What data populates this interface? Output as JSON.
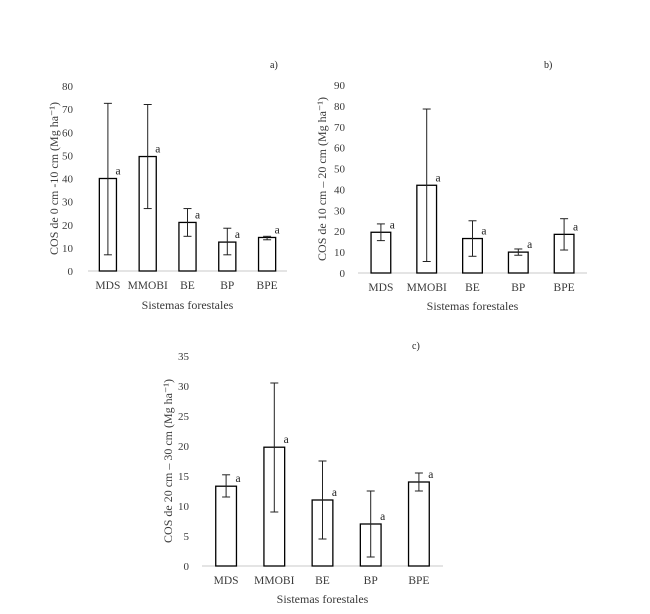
{
  "chart_data": [
    {
      "type": "bar",
      "panel_label": "a)",
      "ylabel": "COS de 0 cm -10 cm (Mg ha⁻¹)",
      "xlabel": "Sistemas forestales",
      "categories": [
        "MDS",
        "MMOBI",
        "BE",
        "BP",
        "BPE"
      ],
      "values": [
        40,
        49.5,
        21,
        12.5,
        14.5
      ],
      "error_low": [
        7,
        27,
        15,
        7,
        13.5
      ],
      "error_high": [
        72.5,
        72,
        27,
        18.5,
        15
      ],
      "significance": [
        "a",
        "a",
        "a",
        "a",
        "a"
      ],
      "ylim": [
        0,
        80
      ],
      "yticks": [
        0,
        10,
        20,
        30,
        40,
        50,
        60,
        70,
        80
      ],
      "grid": false
    },
    {
      "type": "bar",
      "panel_label": "b)",
      "ylabel": "COS de 10 cm – 20 cm (Mg ha⁻¹)",
      "xlabel": "Sistemas forestales",
      "categories": [
        "MDS",
        "MMOBI",
        "BE",
        "BP",
        "BPE"
      ],
      "values": [
        19.5,
        42,
        16.5,
        10,
        18.5
      ],
      "error_low": [
        15.5,
        5.5,
        8,
        8.5,
        11
      ],
      "error_high": [
        23.5,
        78.5,
        25,
        11.5,
        26
      ],
      "significance": [
        "a",
        "a",
        "a",
        "a",
        "a"
      ],
      "ylim": [
        0,
        90
      ],
      "yticks": [
        0,
        10,
        20,
        30,
        40,
        50,
        60,
        70,
        80,
        90
      ],
      "grid": false
    },
    {
      "type": "bar",
      "panel_label": "c)",
      "ylabel": "COS de 20 cm – 30 cm (Mg ha⁻¹)",
      "xlabel": "Sistemas forestales",
      "categories": [
        "MDS",
        "MMOBI",
        "BE",
        "BP",
        "BPE"
      ],
      "values": [
        13.3,
        19.8,
        11,
        7,
        14
      ],
      "error_low": [
        11.5,
        9,
        4.5,
        1.5,
        12.5
      ],
      "error_high": [
        15.2,
        30.5,
        17.5,
        12.5,
        15.5
      ],
      "significance": [
        "a",
        "a",
        "a",
        "a",
        "a"
      ],
      "ylim": [
        0,
        35
      ],
      "yticks": [
        0,
        5,
        10,
        15,
        20,
        25,
        30,
        35
      ],
      "grid": false
    }
  ]
}
